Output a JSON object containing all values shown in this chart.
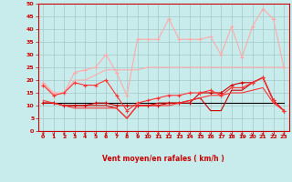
{
  "xlabel": "Vent moyen/en rafales ( km/h )",
  "xlim": [
    -0.5,
    23.5
  ],
  "ylim": [
    0,
    50
  ],
  "xticks": [
    0,
    1,
    2,
    3,
    4,
    5,
    6,
    7,
    8,
    9,
    10,
    11,
    12,
    13,
    14,
    15,
    16,
    17,
    18,
    19,
    20,
    21,
    22,
    23
  ],
  "yticks": [
    0,
    5,
    10,
    15,
    20,
    25,
    30,
    35,
    40,
    45,
    50
  ],
  "background_color": "#c8ecec",
  "grid_color": "#9fbfbf",
  "line_data": [
    {
      "y": [
        11,
        11,
        11,
        11,
        11,
        11,
        11,
        11,
        11,
        11,
        11,
        11,
        11,
        11,
        11,
        11,
        11,
        11,
        11,
        11,
        11,
        11,
        11,
        11
      ],
      "color": "#000000",
      "lw": 0.8,
      "marker": null,
      "ms": 0
    },
    {
      "y": [
        11,
        11,
        10,
        10,
        10,
        10,
        10,
        9,
        5,
        10,
        10,
        11,
        11,
        11,
        12,
        13,
        8,
        8,
        16,
        16,
        19,
        21,
        12,
        8
      ],
      "color": "#cc0000",
      "lw": 0.8,
      "marker": null,
      "ms": 0
    },
    {
      "y": [
        11,
        11,
        10,
        10,
        10,
        11,
        11,
        10,
        10,
        10,
        10,
        10,
        11,
        11,
        11,
        15,
        15,
        15,
        18,
        19,
        19,
        21,
        12,
        8
      ],
      "color": "#cc0000",
      "lw": 0.8,
      "marker": "+",
      "ms": 3
    },
    {
      "y": [
        19,
        15,
        15,
        23,
        24,
        25,
        30,
        23,
        14,
        36,
        36,
        36,
        44,
        36,
        36,
        36,
        37,
        30,
        41,
        29,
        41,
        48,
        44,
        25
      ],
      "color": "#ffaaaa",
      "lw": 0.8,
      "marker": "+",
      "ms": 3
    },
    {
      "y": [
        19,
        14,
        15,
        20,
        20,
        22,
        24,
        24,
        24,
        24,
        25,
        25,
        25,
        25,
        25,
        25,
        25,
        25,
        25,
        25,
        25,
        25,
        25,
        25
      ],
      "color": "#ffaaaa",
      "lw": 0.8,
      "marker": null,
      "ms": 0
    },
    {
      "y": [
        18,
        14,
        15,
        19,
        18,
        18,
        20,
        14,
        8,
        11,
        12,
        13,
        14,
        14,
        15,
        15,
        16,
        14,
        17,
        17,
        19,
        21,
        12,
        8
      ],
      "color": "#ff3333",
      "lw": 0.8,
      "marker": "+",
      "ms": 3
    },
    {
      "y": [
        12,
        11,
        10,
        9,
        9,
        9,
        9,
        9,
        5,
        10,
        10,
        10,
        10,
        11,
        12,
        13,
        14,
        14,
        15,
        15,
        16,
        17,
        11,
        8
      ],
      "color": "#ff3333",
      "lw": 0.8,
      "marker": null,
      "ms": 0
    }
  ]
}
